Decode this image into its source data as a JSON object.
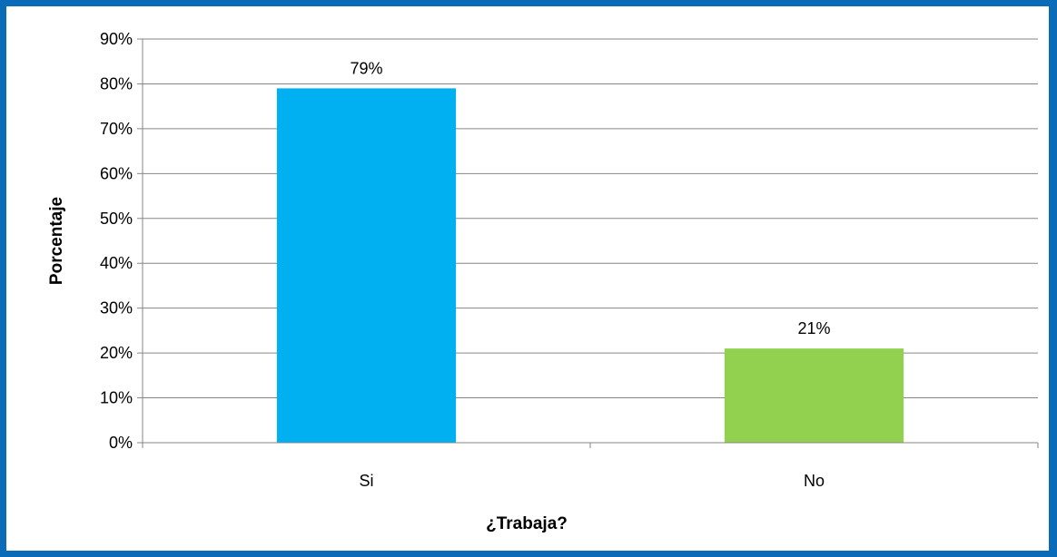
{
  "chart_data": {
    "type": "bar",
    "categories": [
      "Si",
      "No"
    ],
    "values": [
      79,
      21
    ],
    "data_labels": [
      "79%",
      "21%"
    ],
    "colors": [
      "#00b0f0",
      "#92d050"
    ],
    "ylabel": "Porcentaje",
    "xlabel": "¿Trabaja?",
    "ylim": [
      0,
      90
    ],
    "ytick_step": 10,
    "ytick_format": "{v}%",
    "grid": true,
    "legend": "none",
    "border_color": "#0a6cb8"
  }
}
